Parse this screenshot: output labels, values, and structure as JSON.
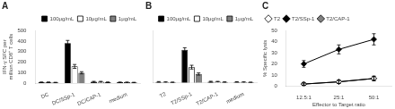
{
  "chart_data": [
    {
      "type": "bar",
      "title": "A",
      "categories": [
        "DC",
        "DC/SSp-1",
        "DC/CAP-1",
        "medium"
      ],
      "series": [
        {
          "name": "100μg/mL",
          "color": "black",
          "values": [
            10,
            380,
            15,
            10
          ],
          "errors": [
            3,
            25,
            4,
            2
          ]
        },
        {
          "name": "10μg/mL",
          "color": "white",
          "values": [
            10,
            160,
            15,
            10
          ],
          "errors": [
            3,
            18,
            4,
            2
          ]
        },
        {
          "name": "1μg/mL",
          "color": "gray",
          "values": [
            8,
            100,
            10,
            8
          ],
          "errors": [
            2,
            10,
            3,
            2
          ]
        }
      ],
      "ylabel": "IFN-γ SFC per million CD8⁺ T cells",
      "ylim": [
        0,
        500
      ],
      "yticks": [
        0,
        100,
        200,
        300,
        400,
        500
      ],
      "grid": false,
      "legend": "upper right"
    },
    {
      "type": "bar",
      "title": "B",
      "categories": [
        "T2",
        "T2/SSp-1",
        "T2/CAP-1",
        "medium"
      ],
      "series": [
        {
          "name": "100μg/mL",
          "color": "black",
          "values": [
            10,
            315,
            12,
            10
          ],
          "errors": [
            3,
            20,
            4,
            2
          ]
        },
        {
          "name": "10μg/mL",
          "color": "white",
          "values": [
            8,
            150,
            12,
            8
          ],
          "errors": [
            2,
            18,
            3,
            2
          ]
        },
        {
          "name": "1μg/mL",
          "color": "gray",
          "values": [
            6,
            85,
            8,
            6
          ],
          "errors": [
            2,
            10,
            2,
            1
          ]
        }
      ],
      "ylim": [
        0,
        500
      ],
      "yticks": [
        0,
        100,
        200,
        300,
        400,
        500
      ],
      "grid": false,
      "legend": "upper right",
      "tick_labels": "x"
    },
    {
      "type": "line",
      "title": "C",
      "categories": [
        "12.5:1",
        "25:1",
        "50:1"
      ],
      "series": [
        {
          "name": "T2",
          "color": "white",
          "marker": "diamond",
          "line_style": "solid",
          "values": [
            2,
            4,
            7
          ],
          "errors": [
            1,
            1.5,
            2
          ]
        },
        {
          "name": "T2/SSp-1",
          "color": "black",
          "marker": "diamond",
          "line_style": "solid",
          "values": [
            20,
            33,
            42
          ],
          "errors": [
            3,
            4,
            5
          ]
        },
        {
          "name": "T2/CAP-1",
          "color": "gray",
          "marker": "diamond",
          "line_style": "solid",
          "values": [
            2,
            4,
            7
          ],
          "errors": [
            1,
            1.5,
            2
          ]
        }
      ],
      "xlabel": "Effector to Target ratio",
      "ylabel": "% Specific lysis",
      "ylim": [
        0,
        50
      ],
      "yticks": [
        0,
        10,
        20,
        30,
        40,
        50
      ],
      "grid": false,
      "legend": "upper left"
    }
  ]
}
